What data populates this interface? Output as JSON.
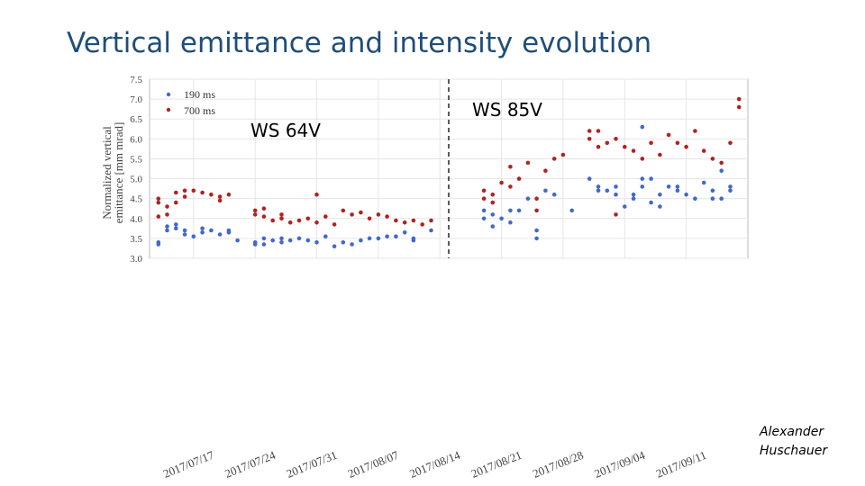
{
  "slide": {
    "title": "Vertical emittance and intensity evolution",
    "author_line1": "Alexander",
    "author_line2": "Huschauer"
  },
  "chart_data": {
    "type": "scatter",
    "ylabel_line1": "Normalized vertical",
    "ylabel_line2": "emittance [mm mrad]",
    "ylim": [
      3.0,
      7.5
    ],
    "yticks": [
      "3.0",
      "3.5",
      "4.0",
      "4.5",
      "5.0",
      "5.5",
      "6.0",
      "6.5",
      "7.0",
      "7.5"
    ],
    "xlim": [
      "2017-07-12",
      "2017-09-18"
    ],
    "xticks": [
      "2017/07/17",
      "2017/07/24",
      "2017/07/31",
      "2017/08/07",
      "2017/08/14",
      "2017/08/21",
      "2017/08/28",
      "2017/09/04",
      "2017/09/11"
    ],
    "grid": true,
    "legend_position": "top-left",
    "colors": {
      "190 ms": "#4169cc",
      "700 ms": "#b22222"
    },
    "annotations": [
      {
        "text": "WS 64V",
        "date": "2017-07-27",
        "y": 6.6
      },
      {
        "text": "WS 85V",
        "date": "2017-08-20",
        "y": 6.9
      }
    ],
    "divider_date": "2017-08-15",
    "series": [
      {
        "name": "190 ms",
        "points": [
          [
            "2017-07-13",
            3.4
          ],
          [
            "2017-07-13",
            3.35
          ],
          [
            "2017-07-14",
            3.8
          ],
          [
            "2017-07-14",
            3.7
          ],
          [
            "2017-07-15",
            3.85
          ],
          [
            "2017-07-15",
            3.75
          ],
          [
            "2017-07-16",
            3.7
          ],
          [
            "2017-07-16",
            3.6
          ],
          [
            "2017-07-17",
            3.55
          ],
          [
            "2017-07-18",
            3.75
          ],
          [
            "2017-07-18",
            3.65
          ],
          [
            "2017-07-19",
            3.7
          ],
          [
            "2017-07-20",
            3.6
          ],
          [
            "2017-07-21",
            3.7
          ],
          [
            "2017-07-21",
            3.65
          ],
          [
            "2017-07-22",
            3.45
          ],
          [
            "2017-07-24",
            3.4
          ],
          [
            "2017-07-24",
            3.35
          ],
          [
            "2017-07-25",
            3.5
          ],
          [
            "2017-07-25",
            3.35
          ],
          [
            "2017-07-26",
            3.45
          ],
          [
            "2017-07-27",
            3.5
          ],
          [
            "2017-07-27",
            3.4
          ],
          [
            "2017-07-28",
            3.45
          ],
          [
            "2017-07-29",
            3.5
          ],
          [
            "2017-07-30",
            3.45
          ],
          [
            "2017-07-31",
            3.4
          ],
          [
            "2017-08-01",
            3.55
          ],
          [
            "2017-08-02",
            3.3
          ],
          [
            "2017-08-03",
            3.4
          ],
          [
            "2017-08-04",
            3.35
          ],
          [
            "2017-08-05",
            3.45
          ],
          [
            "2017-08-06",
            3.5
          ],
          [
            "2017-08-07",
            3.5
          ],
          [
            "2017-08-08",
            3.55
          ],
          [
            "2017-08-09",
            3.55
          ],
          [
            "2017-08-10",
            3.65
          ],
          [
            "2017-08-11",
            3.5
          ],
          [
            "2017-08-11",
            3.45
          ],
          [
            "2017-08-13",
            3.7
          ],
          [
            "2017-08-19",
            4.2
          ],
          [
            "2017-08-19",
            4.0
          ],
          [
            "2017-08-20",
            3.8
          ],
          [
            "2017-08-20",
            4.1
          ],
          [
            "2017-08-21",
            4.0
          ],
          [
            "2017-08-22",
            4.2
          ],
          [
            "2017-08-22",
            3.9
          ],
          [
            "2017-08-23",
            4.2
          ],
          [
            "2017-08-24",
            4.5
          ],
          [
            "2017-08-25",
            3.5
          ],
          [
            "2017-08-25",
            3.7
          ],
          [
            "2017-08-26",
            4.7
          ],
          [
            "2017-08-27",
            4.6
          ],
          [
            "2017-08-29",
            4.2
          ],
          [
            "2017-08-31",
            5.0
          ],
          [
            "2017-09-01",
            4.8
          ],
          [
            "2017-09-01",
            4.7
          ],
          [
            "2017-09-02",
            4.7
          ],
          [
            "2017-09-03",
            4.8
          ],
          [
            "2017-09-03",
            4.6
          ],
          [
            "2017-09-04",
            4.3
          ],
          [
            "2017-09-05",
            4.6
          ],
          [
            "2017-09-05",
            4.5
          ],
          [
            "2017-09-06",
            6.3
          ],
          [
            "2017-09-06",
            5.0
          ],
          [
            "2017-09-06",
            4.8
          ],
          [
            "2017-09-07",
            5.0
          ],
          [
            "2017-09-07",
            4.4
          ],
          [
            "2017-09-08",
            4.6
          ],
          [
            "2017-09-08",
            4.3
          ],
          [
            "2017-09-09",
            4.8
          ],
          [
            "2017-09-10",
            4.8
          ],
          [
            "2017-09-10",
            4.7
          ],
          [
            "2017-09-11",
            4.6
          ],
          [
            "2017-09-12",
            4.5
          ],
          [
            "2017-09-13",
            4.9
          ],
          [
            "2017-09-14",
            4.5
          ],
          [
            "2017-09-14",
            4.7
          ],
          [
            "2017-09-15",
            5.2
          ],
          [
            "2017-09-15",
            4.5
          ],
          [
            "2017-09-16",
            4.7
          ],
          [
            "2017-09-16",
            4.8
          ]
        ]
      },
      {
        "name": "700 ms",
        "points": [
          [
            "2017-07-13",
            4.5
          ],
          [
            "2017-07-13",
            4.4
          ],
          [
            "2017-07-13",
            4.05
          ],
          [
            "2017-07-14",
            4.3
          ],
          [
            "2017-07-14",
            4.1
          ],
          [
            "2017-07-15",
            4.65
          ],
          [
            "2017-07-15",
            4.4
          ],
          [
            "2017-07-16",
            4.7
          ],
          [
            "2017-07-16",
            4.55
          ],
          [
            "2017-07-17",
            4.7
          ],
          [
            "2017-07-18",
            4.65
          ],
          [
            "2017-07-19",
            4.6
          ],
          [
            "2017-07-20",
            4.55
          ],
          [
            "2017-07-20",
            4.45
          ],
          [
            "2017-07-21",
            4.6
          ],
          [
            "2017-07-24",
            4.2
          ],
          [
            "2017-07-24",
            4.1
          ],
          [
            "2017-07-25",
            4.05
          ],
          [
            "2017-07-25",
            4.25
          ],
          [
            "2017-07-26",
            3.95
          ],
          [
            "2017-07-27",
            4.0
          ],
          [
            "2017-07-27",
            4.1
          ],
          [
            "2017-07-28",
            3.9
          ],
          [
            "2017-07-29",
            3.95
          ],
          [
            "2017-07-30",
            4.0
          ],
          [
            "2017-07-31",
            4.6
          ],
          [
            "2017-07-31",
            3.9
          ],
          [
            "2017-08-01",
            4.05
          ],
          [
            "2017-08-02",
            3.85
          ],
          [
            "2017-08-03",
            4.2
          ],
          [
            "2017-08-04",
            4.1
          ],
          [
            "2017-08-05",
            4.15
          ],
          [
            "2017-08-06",
            4.0
          ],
          [
            "2017-08-07",
            4.1
          ],
          [
            "2017-08-08",
            4.05
          ],
          [
            "2017-08-09",
            3.95
          ],
          [
            "2017-08-10",
            3.9
          ],
          [
            "2017-08-11",
            3.95
          ],
          [
            "2017-08-12",
            3.85
          ],
          [
            "2017-08-13",
            3.95
          ],
          [
            "2017-08-19",
            4.7
          ],
          [
            "2017-08-19",
            4.5
          ],
          [
            "2017-08-20",
            4.6
          ],
          [
            "2017-08-20",
            4.4
          ],
          [
            "2017-08-21",
            4.9
          ],
          [
            "2017-08-22",
            5.3
          ],
          [
            "2017-08-22",
            4.8
          ],
          [
            "2017-08-23",
            5.0
          ],
          [
            "2017-08-24",
            5.4
          ],
          [
            "2017-08-25",
            4.5
          ],
          [
            "2017-08-25",
            4.2
          ],
          [
            "2017-08-26",
            5.2
          ],
          [
            "2017-08-27",
            5.5
          ],
          [
            "2017-08-28",
            5.6
          ],
          [
            "2017-08-31",
            6.2
          ],
          [
            "2017-08-31",
            6.0
          ],
          [
            "2017-09-01",
            6.2
          ],
          [
            "2017-09-01",
            5.8
          ],
          [
            "2017-09-02",
            5.9
          ],
          [
            "2017-09-03",
            6.0
          ],
          [
            "2017-09-03",
            4.1
          ],
          [
            "2017-09-04",
            5.8
          ],
          [
            "2017-09-05",
            5.7
          ],
          [
            "2017-09-06",
            5.5
          ],
          [
            "2017-09-07",
            5.9
          ],
          [
            "2017-09-08",
            5.6
          ],
          [
            "2017-09-09",
            6.1
          ],
          [
            "2017-09-10",
            5.9
          ],
          [
            "2017-09-11",
            5.8
          ],
          [
            "2017-09-12",
            6.2
          ],
          [
            "2017-09-13",
            5.7
          ],
          [
            "2017-09-14",
            5.5
          ],
          [
            "2017-09-15",
            5.4
          ],
          [
            "2017-09-16",
            5.9
          ],
          [
            "2017-09-17",
            7.0
          ],
          [
            "2017-09-17",
            6.8
          ]
        ]
      }
    ]
  }
}
